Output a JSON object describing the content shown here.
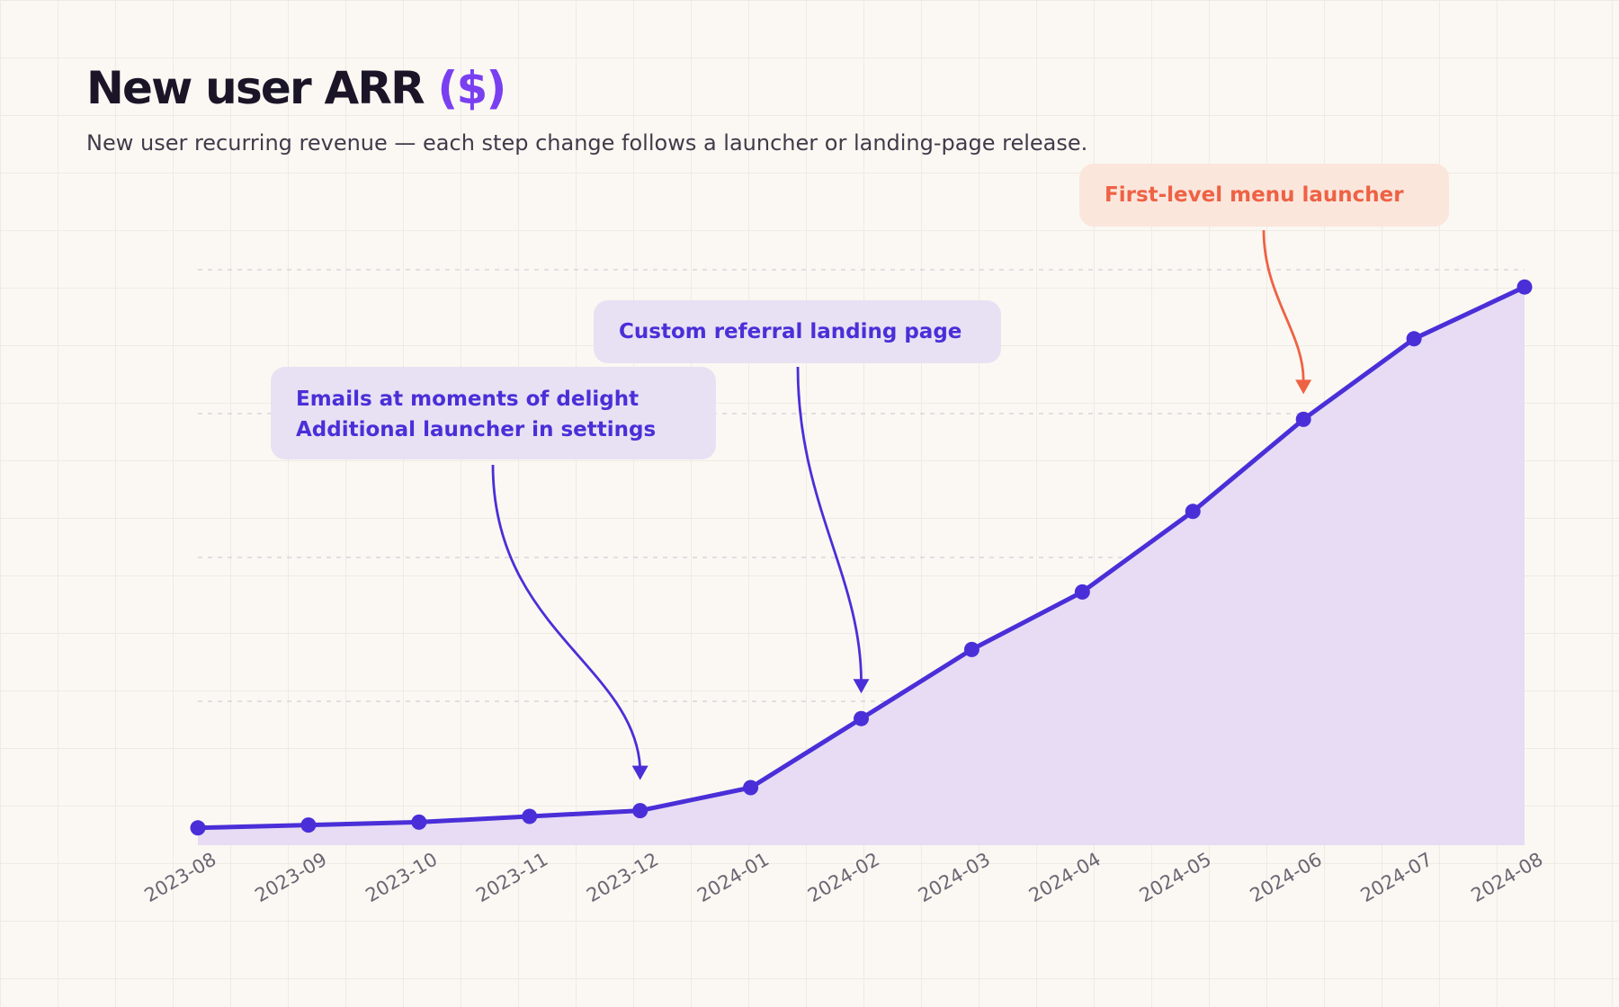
{
  "header": {
    "title": "New user ARR",
    "title_unit": "($)",
    "subtitle": "New user recurring revenue — each step change follows a launcher or landing-page release."
  },
  "colors": {
    "line": "#4a2fd8",
    "area": "#e7dcf3",
    "orange_accent": "#ee6244",
    "title_accent": "#7a3ff0"
  },
  "chart_data": {
    "type": "area",
    "title": "New user ARR ($)",
    "x": [
      "2023-08",
      "2023-09",
      "2023-10",
      "2023-11",
      "2023-12",
      "2024-01",
      "2024-02",
      "2024-03",
      "2024-04",
      "2024-05",
      "2024-06",
      "2024-07",
      "2024-08"
    ],
    "series": [
      {
        "values": [
          3,
          3.5,
          4,
          5,
          6,
          10,
          22,
          34,
          44,
          58,
          74,
          88,
          97
        ]
      }
    ],
    "ylim": [
      0,
      100
    ],
    "grid": true,
    "annotations": [
      {
        "lines": [
          "Emails at moments of delight",
          "Additional launcher in settings"
        ],
        "x": "2023-12",
        "color": "purple"
      },
      {
        "lines": [
          "Custom referral landing page"
        ],
        "x": "2024-02",
        "color": "purple"
      },
      {
        "lines": [
          "First-level menu launcher"
        ],
        "x": "2024-06",
        "color": "orange"
      }
    ]
  }
}
